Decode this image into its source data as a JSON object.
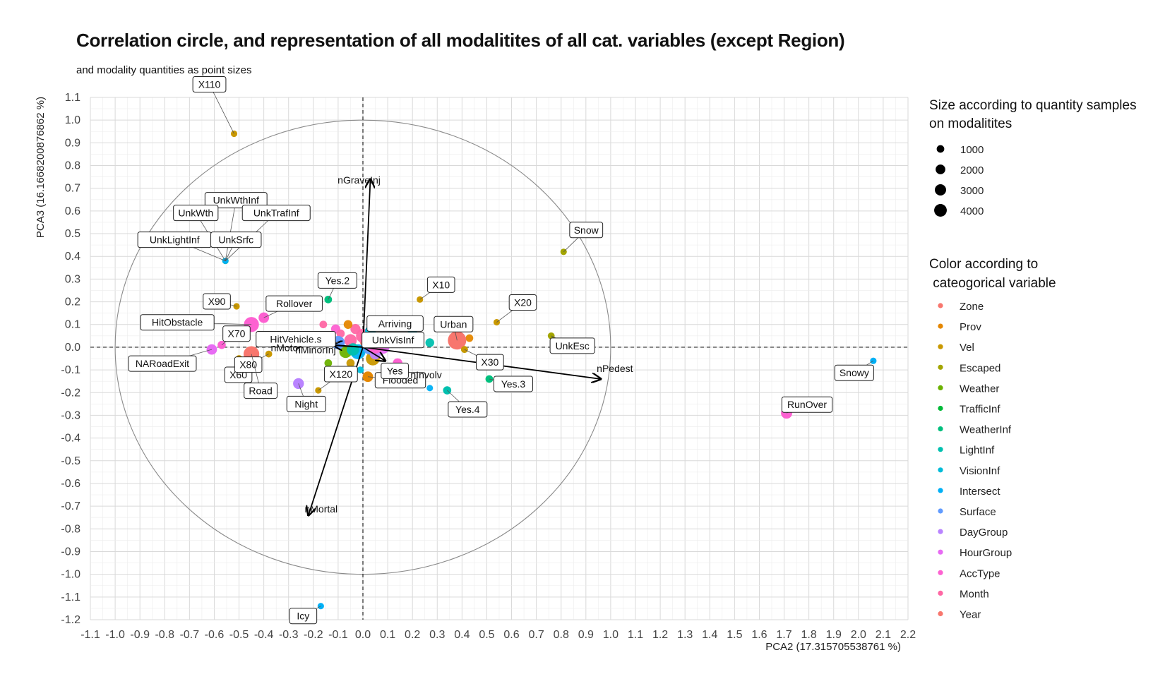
{
  "chart_data": {
    "type": "scatter",
    "title": "Correlation circle, and representation of all modalitites of all cat. variables (except Region)",
    "subtitle": "and modality quantities as point sizes",
    "xlabel": "PCA2 (17.315705538761 %)",
    "ylabel": "PCA3 (16.1668200876862 %)",
    "xlim": [
      -1.1,
      2.2
    ],
    "ylim": [
      -1.2,
      1.1
    ],
    "xticks": [
      "-1.1",
      "-1.0",
      "-0.9",
      "-0.8",
      "-0.7",
      "-0.6",
      "-0.5",
      "-0.4",
      "-0.3",
      "-0.2",
      "-0.1",
      "0.0",
      "0.1",
      "0.2",
      "0.3",
      "0.4",
      "0.5",
      "0.6",
      "0.7",
      "0.8",
      "0.9",
      "1.0",
      "1.1",
      "1.2",
      "1.3",
      "1.4",
      "1.5",
      "1.6",
      "1.7",
      "1.8",
      "1.9",
      "2.0",
      "2.1",
      "2.2"
    ],
    "yticks": [
      "1.1",
      "1.0",
      "0.9",
      "0.8",
      "0.7",
      "0.6",
      "0.5",
      "0.4",
      "0.3",
      "0.2",
      "0.1",
      "0.0",
      "-0.1",
      "-0.2",
      "-0.3",
      "-0.4",
      "-0.5",
      "-0.6",
      "-0.7",
      "-0.8",
      "-0.9",
      "-1.0",
      "-1.1",
      "-1.2"
    ],
    "grid": true,
    "legend_position": "right",
    "size_legend": {
      "title_line1": "Size according to quantity samples",
      "title_line2": "on modalitites",
      "entries": [
        {
          "label": "1000",
          "value": 1000
        },
        {
          "label": "2000",
          "value": 2000
        },
        {
          "label": "3000",
          "value": 3000
        },
        {
          "label": "4000",
          "value": 4000
        }
      ]
    },
    "color_legend": {
      "title_line1": "Color according to",
      "title_line2": " cateogorical variable",
      "entries": [
        {
          "name": "Zone",
          "color": "#F8766D"
        },
        {
          "name": "Prov",
          "color": "#E58700"
        },
        {
          "name": "Vel",
          "color": "#C99800"
        },
        {
          "name": "Escaped",
          "color": "#A3A500"
        },
        {
          "name": "Weather",
          "color": "#6BB100"
        },
        {
          "name": "TrafficInf",
          "color": "#00BA38"
        },
        {
          "name": "WeatherInf",
          "color": "#00BF7D"
        },
        {
          "name": "LightInf",
          "color": "#00C0AF"
        },
        {
          "name": "VisionInf",
          "color": "#00BCD8"
        },
        {
          "name": "Intersect",
          "color": "#00B0F6"
        },
        {
          "name": "Surface",
          "color": "#619CFF"
        },
        {
          "name": "DayGroup",
          "color": "#B983FF"
        },
        {
          "name": "HourGroup",
          "color": "#E76BF3"
        },
        {
          "name": "AccType",
          "color": "#FD61D1"
        },
        {
          "name": "Month",
          "color": "#FF67A4"
        },
        {
          "name": "Year",
          "color": "#F8766D"
        }
      ]
    },
    "circle": {
      "radius": 1.0
    },
    "arrows": [
      {
        "label": "nGraveInj",
        "x": 0.03,
        "y": 0.74
      },
      {
        "label": "nMortal",
        "x": -0.22,
        "y": -0.74
      },
      {
        "label": "nPedest",
        "x": 0.96,
        "y": -0.14
      },
      {
        "label": "nMotor",
        "x": -0.29,
        "y": 0.02
      },
      {
        "label": "nMinorInj",
        "x": -0.12,
        "y": 0.01
      },
      {
        "label": "nInvolv",
        "x": 0.09,
        "y": -0.06
      }
    ],
    "points": [
      {
        "label": "X110",
        "x": -0.52,
        "y": 0.94,
        "color": "#C99800",
        "size": 150
      },
      {
        "label": "UnkWthInf",
        "x": -0.555,
        "y": 0.38,
        "color": "#00BCD8",
        "size": 150
      },
      {
        "label": "Snow",
        "x": 0.81,
        "y": 0.42,
        "color": "#A3A500",
        "size": 150
      },
      {
        "label": "X10",
        "x": 0.23,
        "y": 0.21,
        "color": "#C99800",
        "size": 150
      },
      {
        "label": "X20",
        "x": 0.54,
        "y": 0.11,
        "color": "#C99800",
        "size": 150
      },
      {
        "label": "Yes.2",
        "x": -0.14,
        "y": 0.21,
        "color": "#00BF7D",
        "size": 300
      },
      {
        "label": "X90",
        "x": -0.51,
        "y": 0.18,
        "color": "#C99800",
        "size": 150
      },
      {
        "label": "Rollover",
        "x": -0.4,
        "y": 0.13,
        "color": "#FD61D1",
        "size": 900
      },
      {
        "label": "Arriving",
        "x": 0.03,
        "y": 0.07,
        "color": "#00BCD8",
        "size": 1000
      },
      {
        "label": "HitObstacle",
        "x": -0.45,
        "y": 0.1,
        "color": "#FD61D1",
        "size": 2500
      },
      {
        "label": "Urban",
        "x": 0.38,
        "y": 0.03,
        "color": "#F8766D",
        "size": 4200
      },
      {
        "label": "UnkEsc",
        "x": 0.76,
        "y": 0.05,
        "color": "#A3A500",
        "size": 200
      },
      {
        "label": "X70",
        "x": -0.57,
        "y": 0.01,
        "color": "#FD61D1",
        "size": 400
      },
      {
        "label": "HitVehicle.s",
        "x": -0.1,
        "y": 0.02,
        "color": "#619CFF",
        "size": 1800
      },
      {
        "label": "UnkVisInf",
        "x": 0.05,
        "y": 0.01,
        "color": "#FD61D1",
        "size": 3500
      },
      {
        "label": "NARoadExit",
        "x": -0.61,
        "y": -0.01,
        "color": "#E76BF3",
        "size": 900
      },
      {
        "label": "X60",
        "x": -0.5,
        "y": -0.05,
        "color": "#C99800",
        "size": 200
      },
      {
        "label": "X80",
        "x": -0.38,
        "y": -0.03,
        "color": "#C99800",
        "size": 200
      },
      {
        "label": "Road",
        "x": -0.45,
        "y": -0.03,
        "color": "#F8766D",
        "size": 2800
      },
      {
        "label": "X30",
        "x": 0.41,
        "y": -0.01,
        "color": "#C99800",
        "size": 200
      },
      {
        "label": "X120",
        "x": -0.18,
        "y": -0.19,
        "color": "#C99800",
        "size": 150
      },
      {
        "label": "Flooded",
        "x": 0.02,
        "y": -0.13,
        "color": "#E58700",
        "size": 900
      },
      {
        "label": "Yes",
        "x": 0.14,
        "y": -0.07,
        "color": "#FD61D1",
        "size": 700
      },
      {
        "label": "Yes.3",
        "x": 0.51,
        "y": -0.14,
        "color": "#00BF7D",
        "size": 300
      },
      {
        "label": "Night",
        "x": -0.26,
        "y": -0.16,
        "color": "#B983FF",
        "size": 1000
      },
      {
        "label": "Yes.4",
        "x": 0.34,
        "y": -0.19,
        "color": "#00C0AF",
        "size": 400
      },
      {
        "label": "RunOver",
        "x": 1.71,
        "y": -0.29,
        "color": "#FD61D1",
        "size": 1100
      },
      {
        "label": "Snowy",
        "x": 2.06,
        "y": -0.06,
        "color": "#00B0F6",
        "size": 150
      },
      {
        "label": "Icy",
        "x": -0.17,
        "y": -1.14,
        "color": "#00B0F6",
        "size": 150
      },
      {
        "label": "UnkWth",
        "x": -0.555,
        "y": 0.38,
        "color": "#A3A500",
        "size": 100
      },
      {
        "label": "UnkTrafInf",
        "x": -0.555,
        "y": 0.38,
        "color": "#00BA38",
        "size": 100
      },
      {
        "label": "UnkLightInf",
        "x": -0.555,
        "y": 0.38,
        "color": "#00C0AF",
        "size": 100
      },
      {
        "label": "UnkSrfc",
        "x": -0.555,
        "y": 0.38,
        "color": "#00B0F6",
        "size": 100
      }
    ],
    "cluster_points": [
      {
        "x": -0.05,
        "y": 0.03,
        "color": "#FF67A4",
        "size": 1500
      },
      {
        "x": -0.02,
        "y": -0.02,
        "color": "#00B0F6",
        "size": 2500
      },
      {
        "x": 0.02,
        "y": 0.03,
        "color": "#F8766D",
        "size": 3200
      },
      {
        "x": 0.04,
        "y": -0.05,
        "color": "#C99800",
        "size": 2000
      },
      {
        "x": 0.0,
        "y": 0.05,
        "color": "#FF67A4",
        "size": 2000
      },
      {
        "x": -0.07,
        "y": -0.02,
        "color": "#6BB100",
        "size": 1500
      },
      {
        "x": 0.08,
        "y": 0.0,
        "color": "#E76BF3",
        "size": 1800
      },
      {
        "x": -0.03,
        "y": 0.08,
        "color": "#FF67A4",
        "size": 800
      },
      {
        "x": 0.03,
        "y": 0.0,
        "color": "#619CFF",
        "size": 2500
      },
      {
        "x": -0.11,
        "y": 0.08,
        "color": "#FD61D1",
        "size": 600
      },
      {
        "x": 0.13,
        "y": 0.04,
        "color": "#FF67A4",
        "size": 500
      },
      {
        "x": -0.06,
        "y": 0.1,
        "color": "#E58700",
        "size": 500
      },
      {
        "x": 0.2,
        "y": 0.07,
        "color": "#00BCD8",
        "size": 600
      },
      {
        "x": 0.27,
        "y": 0.02,
        "color": "#00C0AF",
        "size": 500
      },
      {
        "x": 0.43,
        "y": 0.04,
        "color": "#E58700",
        "size": 300
      },
      {
        "x": 0.41,
        "y": -0.01,
        "color": "#6BB100",
        "size": 200
      },
      {
        "x": -0.14,
        "y": -0.07,
        "color": "#6BB100",
        "size": 300
      },
      {
        "x": -0.05,
        "y": -0.07,
        "color": "#C99800",
        "size": 400
      },
      {
        "x": 0.27,
        "y": -0.18,
        "color": "#00B0F6",
        "size": 150
      },
      {
        "x": -0.04,
        "y": -0.01,
        "color": "#00C0AF",
        "size": 1500
      },
      {
        "x": -0.16,
        "y": 0.1,
        "color": "#FF67A4",
        "size": 300
      },
      {
        "x": -0.09,
        "y": 0.06,
        "color": "#FF67A4",
        "size": 400
      },
      {
        "x": 0.05,
        "y": -0.03,
        "color": "#B983FF",
        "size": 1000
      },
      {
        "x": -0.01,
        "y": -0.1,
        "color": "#00BCD8",
        "size": 200
      }
    ]
  }
}
